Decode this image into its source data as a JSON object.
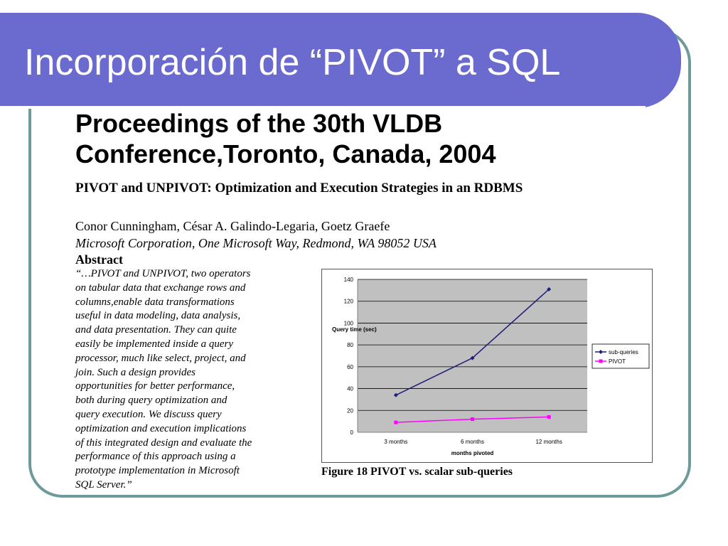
{
  "slide": {
    "title": "Incorporación de “PIVOT” a SQL",
    "heading_line1": "Proceedings of the 30th VLDB",
    "heading_line2": "Conference,Toronto, Canada, 2004",
    "paper_title": "PIVOT and UNPIVOT: Optimization and Execution Strategies in an RDBMS",
    "authors": "Conor Cunningham, César A. Galindo-Legaria, Goetz Graefe",
    "affiliation": "Microsoft Corporation, One Microsoft Way, Redmond, WA 98052 USA",
    "abstract_label": "Abstract",
    "abstract_lines": [
      "“…PIVOT and UNPIVOT, two operators",
      "on tabular data that exchange rows and",
      "columns,enable data transformations",
      "useful in data modeling, data analysis,",
      "and data presentation. They can quite",
      "easily be implemented inside a query",
      "processor, much like select, project, and",
      "join. Such a design provides",
      "opportunities for better performance,",
      "both during query optimization and",
      "query execution. We discuss query",
      "optimization and execution implications",
      "of this integrated design and evaluate the",
      "performance of this approach using a",
      "prototype implementation in Microsoft",
      "SQL Server.”"
    ],
    "figure_caption": "Figure 18 PIVOT vs. scalar sub-queries"
  },
  "chart_data": {
    "type": "line",
    "title": "",
    "xlabel": "months pivoted",
    "ylabel": "Query time (sec)",
    "categories": [
      "3 months",
      "6 months",
      "12 months"
    ],
    "ylim": [
      0,
      140
    ],
    "yticks": [
      0,
      20,
      40,
      60,
      80,
      100,
      120,
      140
    ],
    "grid": true,
    "legend_position": "right",
    "series": [
      {
        "name": "sub-queries",
        "values": [
          34,
          68,
          131
        ],
        "color": "#1f1f7a",
        "marker": "diamond"
      },
      {
        "name": "PIVOT",
        "values": [
          9,
          12,
          14
        ],
        "color": "#ff00ff",
        "marker": "square"
      }
    ],
    "plot_background": "#c0c0c0"
  }
}
